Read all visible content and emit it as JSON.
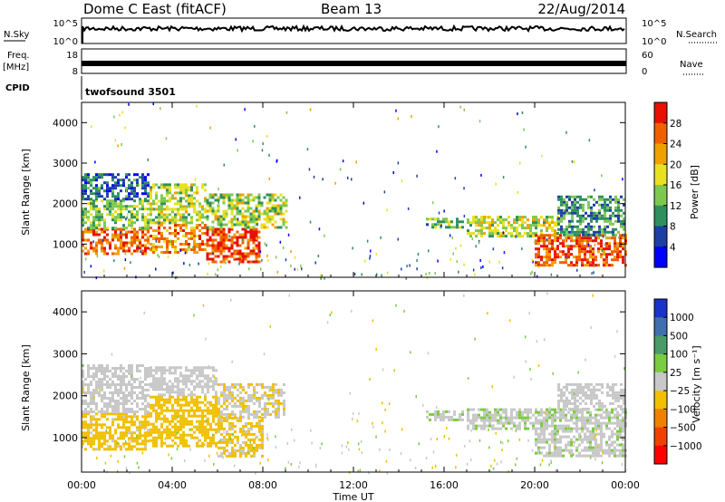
{
  "header": {
    "radar": "Dome C East (fitACF)",
    "beam": "Beam 13",
    "date": "22/Aug/2014"
  },
  "aux": {
    "nsky_label": "N.Sky",
    "nsearch_label": "N.Search",
    "noise_ticks": [
      "10^5",
      "10^0"
    ],
    "freq_label": "Freq.",
    "freq_unit": "[MHz]",
    "freq_ticks": [
      "18",
      "8"
    ],
    "nave_label": "Nave",
    "nave_ticks": [
      "60",
      "0"
    ],
    "cpid_label": "CPID",
    "cpid_value": "twofsound 3501"
  },
  "colors": {
    "power": [
      "#0000ff",
      "#1d3fa5",
      "#2f8f5f",
      "#7ec850",
      "#e8e020",
      "#f0a000",
      "#f06000",
      "#e81000"
    ],
    "velocity": [
      "#1a33c8",
      "#3f6fae",
      "#4a9a6a",
      "#7acc40",
      "#c8c8c8",
      "#f0c000",
      "#f08000",
      "#f04000",
      "#ff0000"
    ]
  },
  "chart_data": [
    {
      "type": "heatmap",
      "panel": "power",
      "xlabel": "",
      "ylabel": "Slant Range [km]",
      "x_ticks": [
        "00:00",
        "04:00",
        "08:00",
        "12:00",
        "16:00",
        "20:00",
        "00:00"
      ],
      "xlim_hours": [
        0,
        24
      ],
      "ylim_km": [
        180,
        4500
      ],
      "y_ticks": [
        1000,
        2000,
        3000,
        4000
      ],
      "colorbar_label": "Power [dB]",
      "colorbar_ticks": [
        "28",
        "24",
        "20",
        "16",
        "12",
        "8",
        "4"
      ],
      "colorbar_range": [
        0,
        30
      ],
      "regions": [
        {
          "t0": 0.0,
          "t1": 3.0,
          "r0": 750,
          "r1": 1400,
          "level": 24
        },
        {
          "t0": 0.0,
          "t1": 3.0,
          "r0": 1400,
          "r1": 2100,
          "level": 13
        },
        {
          "t0": 0.0,
          "t1": 3.0,
          "r0": 2100,
          "r1": 2750,
          "level": 7
        },
        {
          "t0": 3.0,
          "t1": 5.5,
          "r0": 800,
          "r1": 1500,
          "level": 22
        },
        {
          "t0": 3.0,
          "t1": 5.5,
          "r0": 1500,
          "r1": 2500,
          "level": 15
        },
        {
          "t0": 5.5,
          "t1": 7.8,
          "r0": 550,
          "r1": 1400,
          "level": 26
        },
        {
          "t0": 5.5,
          "t1": 9.0,
          "r0": 1400,
          "r1": 2250,
          "level": 15
        },
        {
          "t0": 15.2,
          "t1": 16.8,
          "r0": 1400,
          "r1": 1650,
          "level": 12
        },
        {
          "t0": 17.0,
          "t1": 21.0,
          "r0": 1200,
          "r1": 1700,
          "level": 15
        },
        {
          "t0": 20.0,
          "t1": 24.0,
          "r0": 500,
          "r1": 1250,
          "level": 25
        },
        {
          "t0": 21.0,
          "t1": 24.0,
          "r0": 1250,
          "r1": 2200,
          "level": 10
        }
      ]
    },
    {
      "type": "heatmap",
      "panel": "velocity",
      "xlabel": "Time UT",
      "ylabel": "Slant Range [km]",
      "x_ticks": [
        "00:00",
        "04:00",
        "08:00",
        "12:00",
        "16:00",
        "20:00",
        "00:00"
      ],
      "xlim_hours": [
        0,
        24
      ],
      "ylim_km": [
        180,
        4500
      ],
      "y_ticks": [
        1000,
        2000,
        3000,
        4000
      ],
      "colorbar_label": "Velocity [m s⁻¹]",
      "colorbar_ticks": [
        "1000",
        "500",
        "100",
        "25",
        "−25",
        "−100",
        "−500",
        "−1000"
      ],
      "colorbar_range": [
        -1500,
        1500
      ],
      "regions": [
        {
          "t0": 0.0,
          "t1": 3.0,
          "r0": 700,
          "r1": 1600,
          "level": -300
        },
        {
          "t0": 0.0,
          "t1": 3.0,
          "r0": 1600,
          "r1": 2750,
          "level": 0
        },
        {
          "t0": 3.0,
          "t1": 6.0,
          "r0": 800,
          "r1": 2000,
          "level": -350
        },
        {
          "t0": 3.0,
          "t1": 6.0,
          "r0": 2000,
          "r1": 2700,
          "level": 0
        },
        {
          "t0": 6.0,
          "t1": 8.0,
          "r0": 550,
          "r1": 1500,
          "level": -250
        },
        {
          "t0": 6.0,
          "t1": 9.0,
          "r0": 1500,
          "r1": 2300,
          "level": -120
        },
        {
          "t0": 15.2,
          "t1": 16.8,
          "r0": 1400,
          "r1": 1650,
          "level": 60
        },
        {
          "t0": 17.0,
          "t1": 20.5,
          "r0": 1200,
          "r1": 1700,
          "level": 80
        },
        {
          "t0": 20.0,
          "t1": 24.0,
          "r0": 550,
          "r1": 1700,
          "level": 70
        },
        {
          "t0": 21.0,
          "t1": 24.0,
          "r0": 1700,
          "r1": 2300,
          "level": 0
        }
      ]
    }
  ]
}
